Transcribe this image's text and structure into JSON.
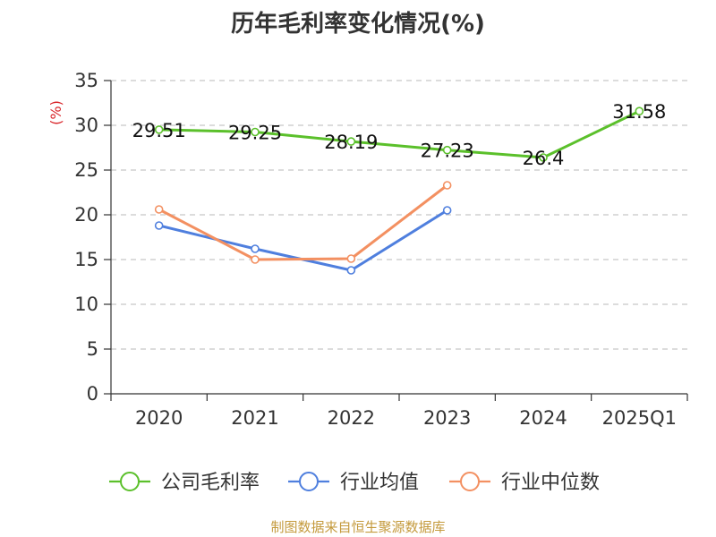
{
  "title": "历年毛利率变化情况(%)",
  "source": "制图数据来自恒生聚源数据库",
  "chart_data": {
    "type": "line",
    "title": "历年毛利率变化情况(%)",
    "ylabel": "(%)",
    "xlabel": "",
    "categories": [
      "2020",
      "2021",
      "2022",
      "2023",
      "2024",
      "2025Q1"
    ],
    "ylim": [
      0,
      35
    ],
    "yticks": [
      0,
      5,
      10,
      15,
      20,
      25,
      30,
      35
    ],
    "grid": true,
    "legend_position": "bottom",
    "series": [
      {
        "name": "公司毛利率",
        "color": "#5bc02b",
        "values": [
          29.51,
          29.25,
          28.19,
          27.23,
          26.4,
          31.58
        ],
        "labels": [
          "29.51",
          "29.25",
          "28.19",
          "27.23",
          "26.4",
          "31.58"
        ]
      },
      {
        "name": "行业均值",
        "color": "#4f7fde",
        "values": [
          18.8,
          16.2,
          13.8,
          20.5,
          null,
          null
        ]
      },
      {
        "name": "行业中位数",
        "color": "#f39061",
        "values": [
          20.6,
          15.0,
          15.1,
          23.3,
          null,
          null
        ]
      }
    ]
  }
}
